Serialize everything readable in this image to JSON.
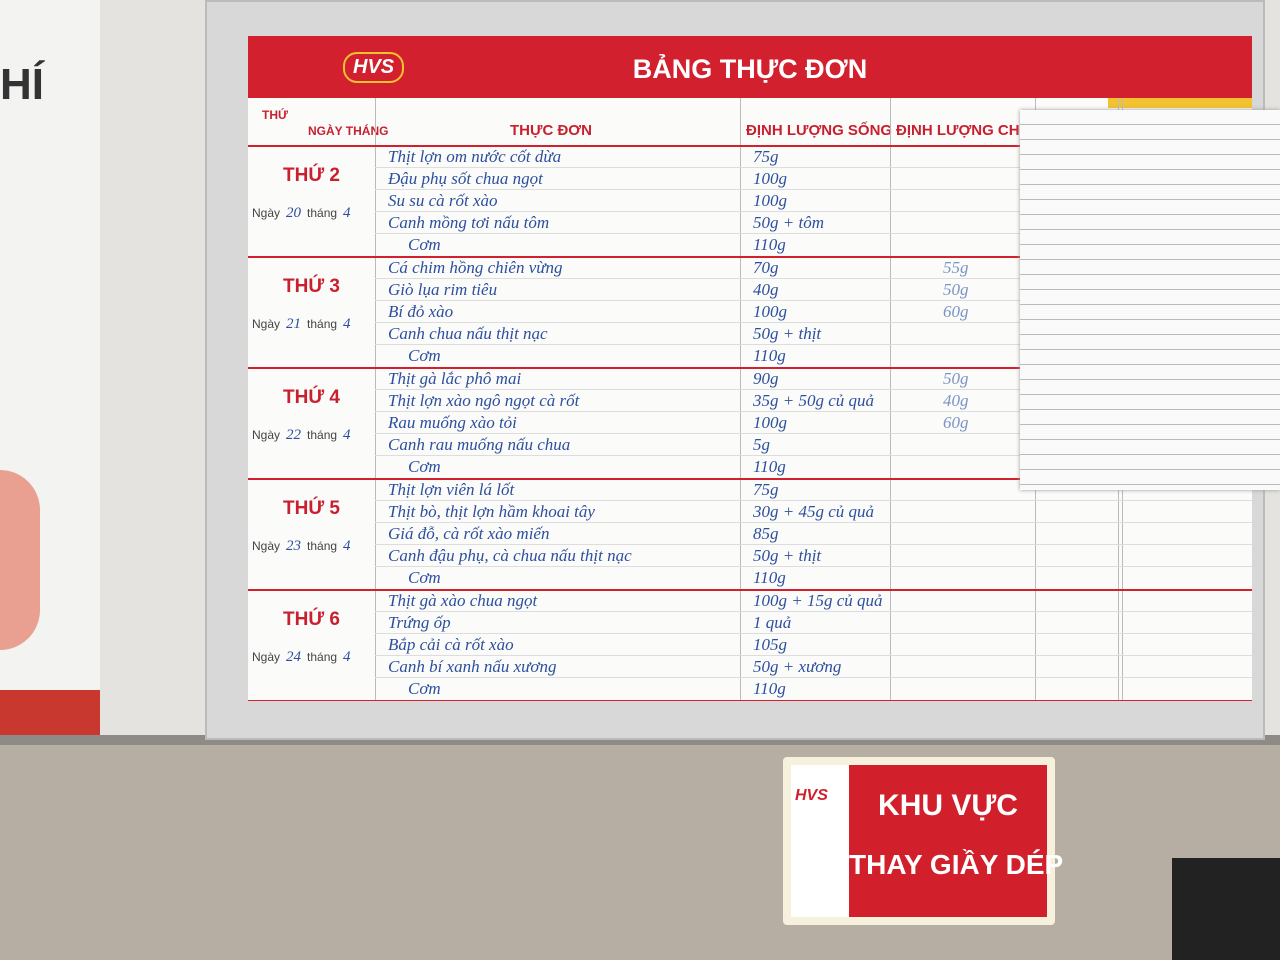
{
  "wall_text": "HÍ",
  "board": {
    "logo": "HVS",
    "title": "BẢNG THỰC ĐƠN",
    "columns": {
      "weekday": "THỨ",
      "date": "NGÀY THÁNG",
      "menu": "THỰC ĐƠN",
      "raw": "ĐỊNH LƯỢNG SỐNG",
      "cooked": "ĐỊNH LƯỢNG CHÍN"
    },
    "date_words": {
      "day": "Ngày",
      "month": "tháng"
    },
    "days": [
      {
        "label": "THỨ 2",
        "day": "20",
        "month": "4",
        "items": [
          {
            "dish": "Thịt lợn om nước cốt dừa",
            "raw": "75g"
          },
          {
            "dish": "Đậu phụ sốt chua ngọt",
            "raw": "100g"
          },
          {
            "dish": "Su su cà rốt xào",
            "raw": "100g"
          },
          {
            "dish": "Canh mồng tơi nấu tôm",
            "raw": "50g + tôm"
          },
          {
            "dish": "Cơm",
            "raw": "110g"
          }
        ]
      },
      {
        "label": "THỨ 3",
        "day": "21",
        "month": "4",
        "items": [
          {
            "dish": "Cá chim hồng chiên vừng",
            "raw": "70g",
            "cooked": "55g"
          },
          {
            "dish": "Giò lụa rim tiêu",
            "raw": "40g",
            "cooked": "50g"
          },
          {
            "dish": "Bí đỏ xào",
            "raw": "100g",
            "cooked": "60g"
          },
          {
            "dish": "Canh chua nấu thịt nạc",
            "raw": "50g + thịt"
          },
          {
            "dish": "Cơm",
            "raw": "110g"
          }
        ]
      },
      {
        "label": "THỨ 4",
        "day": "22",
        "month": "4",
        "items": [
          {
            "dish": "Thịt gà lắc phô mai",
            "raw": "90g",
            "cooked": "50g"
          },
          {
            "dish": "Thịt lợn xào ngô ngọt cà rốt",
            "raw": "35g + 50g củ quả",
            "cooked": "40g"
          },
          {
            "dish": "Rau muống xào tỏi",
            "raw": "100g",
            "cooked": "60g"
          },
          {
            "dish": "Canh rau muống nấu chua",
            "raw": "5g"
          },
          {
            "dish": "Cơm",
            "raw": "110g"
          }
        ]
      },
      {
        "label": "THỨ 5",
        "day": "23",
        "month": "4",
        "items": [
          {
            "dish": "Thịt lợn viên lá lốt",
            "raw": "75g"
          },
          {
            "dish": "Thịt bò, thịt lợn hầm khoai tây",
            "raw": "30g + 45g củ quả"
          },
          {
            "dish": "Giá đỗ, cà rốt xào miến",
            "raw": "85g"
          },
          {
            "dish": "Canh đậu phụ, cà chua nấu thịt nạc",
            "raw": "50g + thịt"
          },
          {
            "dish": "Cơm",
            "raw": "110g"
          }
        ]
      },
      {
        "label": "THỨ 6",
        "day": "24",
        "month": "4",
        "items": [
          {
            "dish": "Thịt gà xào chua ngọt",
            "raw": "100g + 15g củ quả"
          },
          {
            "dish": "Trứng ốp",
            "raw": "1 quả"
          },
          {
            "dish": "Bắp cải cà rốt xào",
            "raw": "105g"
          },
          {
            "dish": "Canh bí xanh nấu xương",
            "raw": "50g + xương"
          },
          {
            "dish": "Cơm",
            "raw": "110g"
          }
        ]
      }
    ]
  },
  "sign": {
    "logo": "HVS",
    "line1": "KHU VỰC",
    "line2": "THAY GIẦY DÉP"
  }
}
